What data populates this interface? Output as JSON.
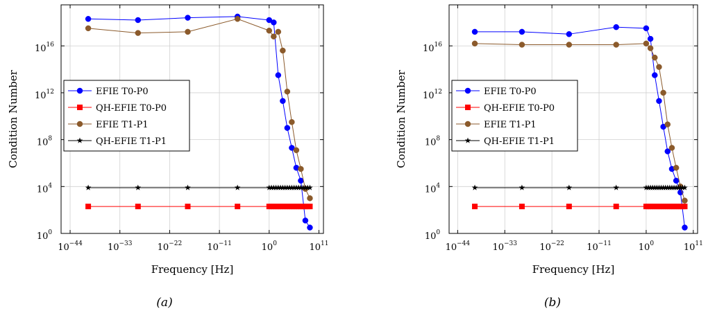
{
  "chart_data": [
    {
      "type": "line",
      "caption": "(a)",
      "xlabel": "Frequency [Hz]",
      "ylabel": "Condition Number",
      "x_scale": "log",
      "y_scale": "log",
      "xlim_exp": [
        -46,
        12
      ],
      "ylim_exp": [
        0,
        19.5
      ],
      "x_ticks": [
        {
          "base": "10",
          "exp": "−44",
          "value_exp": -44
        },
        {
          "base": "10",
          "exp": "−33",
          "value_exp": -33
        },
        {
          "base": "10",
          "exp": "−22",
          "value_exp": -22
        },
        {
          "base": "10",
          "exp": "−11",
          "value_exp": -11
        },
        {
          "base": "10",
          "exp": "0",
          "value_exp": 0
        },
        {
          "base": "10",
          "exp": "11",
          "value_exp": 11
        }
      ],
      "y_ticks": [
        {
          "base": "10",
          "exp": "0",
          "value_exp": 0
        },
        {
          "base": "10",
          "exp": "4",
          "value_exp": 4
        },
        {
          "base": "10",
          "exp": "8",
          "value_exp": 8
        },
        {
          "base": "10",
          "exp": "12",
          "value_exp": 12
        },
        {
          "base": "10",
          "exp": "16",
          "value_exp": 16
        }
      ],
      "grid": true,
      "legend_position": "center-left",
      "series": [
        {
          "name": "EFIE T0-P0",
          "color": "#0000ff",
          "marker": "circle",
          "log10_x": [
            -40,
            -29,
            -18,
            -7,
            0,
            1,
            2,
            3,
            4,
            5,
            6,
            7,
            8,
            9
          ],
          "log10_y": [
            18.3,
            18.2,
            18.4,
            18.5,
            18.2,
            18.0,
            13.5,
            11.3,
            9.0,
            7.3,
            5.6,
            4.5,
            1.1,
            0.5
          ]
        },
        {
          "name": "QH-EFIE T0-P0",
          "color": "#ff0000",
          "marker": "square",
          "log10_x": [
            -40,
            -29,
            -18,
            -7,
            0,
            0.5,
            1,
            1.5,
            2,
            2.5,
            3,
            3.5,
            4,
            4.5,
            5,
            5.5,
            6,
            6.5,
            7,
            7.5,
            8,
            8.5,
            9
          ],
          "log10_y": [
            2.3,
            2.3,
            2.3,
            2.3,
            2.3,
            2.3,
            2.3,
            2.3,
            2.3,
            2.3,
            2.3,
            2.3,
            2.3,
            2.3,
            2.3,
            2.3,
            2.3,
            2.3,
            2.3,
            2.3,
            2.3,
            2.3,
            2.3
          ]
        },
        {
          "name": "EFIE T1-P1",
          "color": "#8b5a2b",
          "marker": "circle",
          "log10_x": [
            -40,
            -29,
            -18,
            -7,
            0,
            1,
            2,
            3,
            4,
            5,
            6,
            7,
            8,
            9
          ],
          "log10_y": [
            17.5,
            17.1,
            17.2,
            18.3,
            17.3,
            16.8,
            17.2,
            15.6,
            12.1,
            9.5,
            7.1,
            5.5,
            3.8,
            3.0
          ]
        },
        {
          "name": "QH-EFIE T1-P1",
          "color": "#000000",
          "marker": "star",
          "log10_x": [
            -40,
            -29,
            -18,
            -7,
            0,
            0.5,
            1,
            1.5,
            2,
            2.5,
            3,
            3.5,
            4,
            4.5,
            5,
            5.5,
            6,
            6.5,
            7,
            7.5,
            8,
            8.5,
            9
          ],
          "log10_y": [
            3.9,
            3.9,
            3.9,
            3.9,
            3.9,
            3.9,
            3.9,
            3.9,
            3.9,
            3.9,
            3.9,
            3.9,
            3.9,
            3.9,
            3.9,
            3.9,
            3.9,
            3.9,
            3.9,
            3.9,
            3.9,
            3.9,
            3.9
          ]
        }
      ]
    },
    {
      "type": "line",
      "caption": "(b)",
      "xlabel": "Frequency [Hz]",
      "ylabel": "Condition Number",
      "x_scale": "log",
      "y_scale": "log",
      "xlim_exp": [
        -46,
        12
      ],
      "ylim_exp": [
        0,
        19.5
      ],
      "x_ticks": [
        {
          "base": "10",
          "exp": "−44",
          "value_exp": -44
        },
        {
          "base": "10",
          "exp": "−33",
          "value_exp": -33
        },
        {
          "base": "10",
          "exp": "−22",
          "value_exp": -22
        },
        {
          "base": "10",
          "exp": "−11",
          "value_exp": -11
        },
        {
          "base": "10",
          "exp": "0",
          "value_exp": 0
        },
        {
          "base": "10",
          "exp": "11",
          "value_exp": 11
        }
      ],
      "y_ticks": [
        {
          "base": "10",
          "exp": "0",
          "value_exp": 0
        },
        {
          "base": "10",
          "exp": "4",
          "value_exp": 4
        },
        {
          "base": "10",
          "exp": "8",
          "value_exp": 8
        },
        {
          "base": "10",
          "exp": "12",
          "value_exp": 12
        },
        {
          "base": "10",
          "exp": "16",
          "value_exp": 16
        }
      ],
      "grid": true,
      "legend_position": "center-left",
      "series": [
        {
          "name": "EFIE T0-P0",
          "color": "#0000ff",
          "marker": "circle",
          "log10_x": [
            -40,
            -29,
            -18,
            -7,
            0,
            1,
            2,
            3,
            4,
            5,
            6,
            7,
            8,
            9
          ],
          "log10_y": [
            17.2,
            17.2,
            17.0,
            17.6,
            17.5,
            16.6,
            13.5,
            11.3,
            9.1,
            7.0,
            5.5,
            4.5,
            3.5,
            0.5
          ]
        },
        {
          "name": "QH-EFIE T0-P0",
          "color": "#ff0000",
          "marker": "square",
          "log10_x": [
            -40,
            -29,
            -18,
            -7,
            0,
            0.5,
            1,
            1.5,
            2,
            2.5,
            3,
            3.5,
            4,
            4.5,
            5,
            5.5,
            6,
            6.5,
            7,
            7.5,
            8,
            8.5,
            9
          ],
          "log10_y": [
            2.3,
            2.3,
            2.3,
            2.3,
            2.3,
            2.3,
            2.3,
            2.3,
            2.3,
            2.3,
            2.3,
            2.3,
            2.3,
            2.3,
            2.3,
            2.3,
            2.3,
            2.3,
            2.3,
            2.3,
            2.3,
            2.3,
            2.3
          ]
        },
        {
          "name": "EFIE T1-P1",
          "color": "#8b5a2b",
          "marker": "circle",
          "log10_x": [
            -40,
            -29,
            -18,
            -7,
            0,
            1,
            2,
            3,
            4,
            5,
            6,
            7,
            8,
            9
          ],
          "log10_y": [
            16.2,
            16.1,
            16.1,
            16.1,
            16.2,
            15.8,
            15.0,
            14.2,
            12.0,
            9.3,
            7.3,
            5.6,
            4.0,
            2.8
          ]
        },
        {
          "name": "QH-EFIE T1-P1",
          "color": "#000000",
          "marker": "star",
          "log10_x": [
            -40,
            -29,
            -18,
            -7,
            0,
            0.5,
            1,
            1.5,
            2,
            2.5,
            3,
            3.5,
            4,
            4.5,
            5,
            5.5,
            6,
            6.5,
            7,
            7.5,
            8,
            8.5,
            9
          ],
          "log10_y": [
            3.9,
            3.9,
            3.9,
            3.9,
            3.9,
            3.9,
            3.9,
            3.9,
            3.9,
            3.9,
            3.9,
            3.9,
            3.9,
            3.9,
            3.9,
            3.9,
            3.9,
            3.9,
            3.9,
            3.9,
            3.9,
            3.9,
            3.9
          ]
        }
      ]
    }
  ]
}
